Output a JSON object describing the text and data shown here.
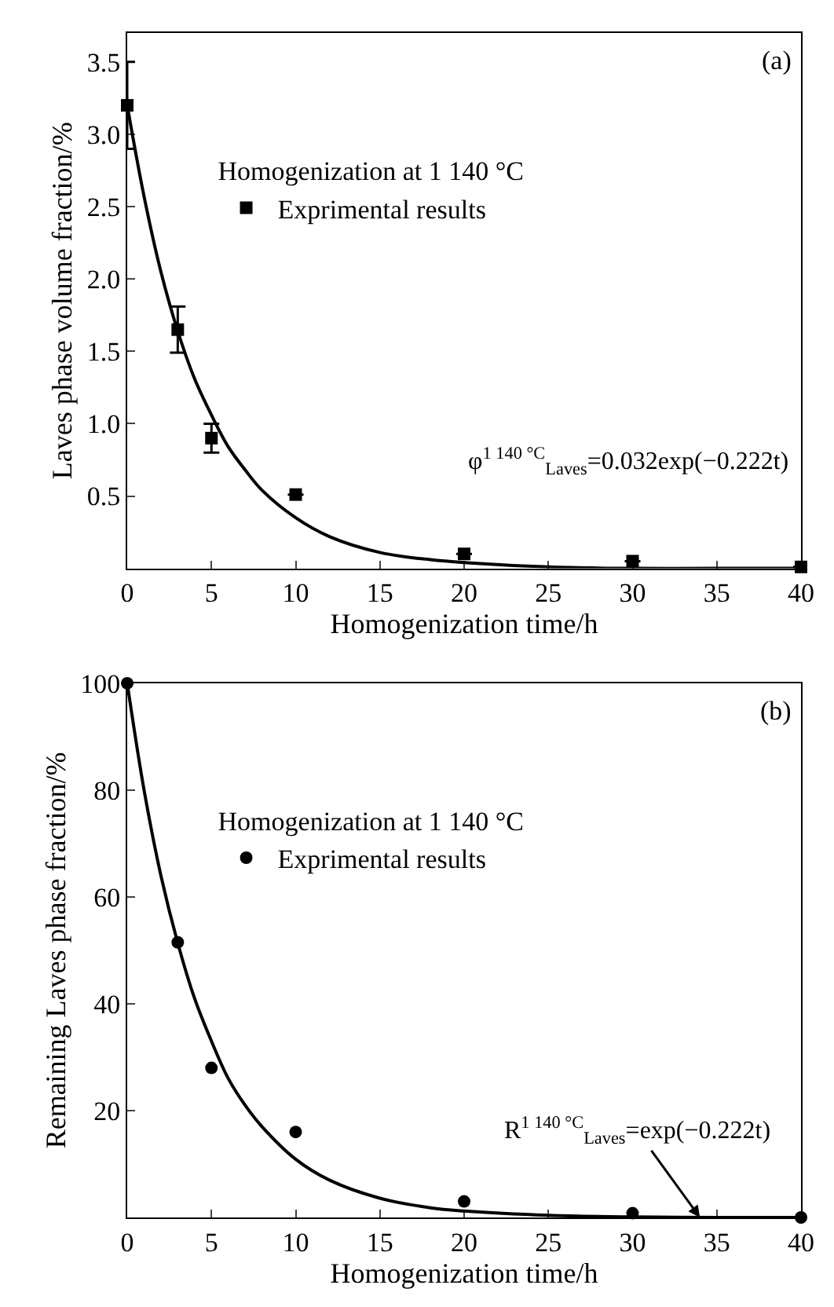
{
  "chart_data": [
    {
      "type": "scatter",
      "title": "(a)",
      "xlabel": "Homogenization time/h",
      "ylabel": "Laves phase volume fraction/%",
      "legend_title": "Homogenization at 1 140 °C",
      "legend": "top left",
      "xlim": [
        0,
        40
      ],
      "xticks": [
        0,
        5,
        10,
        15,
        20,
        25,
        30,
        35,
        40
      ],
      "ylim": [
        0,
        3.7
      ],
      "yticks": [
        0.5,
        {
          "value": 1,
          "label": "1.0"
        },
        1.5,
        {
          "value": 2,
          "label": "2.0"
        },
        2.5,
        {
          "value": 3,
          "label": "3.0"
        },
        3.5
      ],
      "annotations": [
        "φ$^{1 140 °C}$$_{Laves}$=0.032exp(−0.222t)"
      ],
      "series": [
        {
          "name": "Exprimental results",
          "marker": "square",
          "color": "#000000",
          "x": [
            0,
            3,
            5,
            10,
            20,
            30,
            40
          ],
          "values": [
            3.2,
            1.65,
            0.9,
            0.51,
            0.1,
            0.05,
            0.01
          ],
          "errors": [
            0.3,
            0.16,
            0.1,
            null,
            null,
            null,
            null
          ]
        },
        {
          "type": "line",
          "color": "#000000",
          "line_style": "solid",
          "x": [
            0,
            1,
            2,
            3,
            4,
            5,
            6,
            7,
            8,
            10,
            12,
            15,
            18,
            20,
            25,
            30,
            35,
            40
          ],
          "values": [
            3.2,
            2.57,
            2.05,
            1.64,
            1.31,
            1.06,
            0.84,
            0.68,
            0.54,
            0.35,
            0.22,
            0.11,
            0.06,
            0.04,
            0.01,
            0,
            0,
            0
          ]
        }
      ]
    },
    {
      "type": "scatter",
      "title": "(b)",
      "xlabel": "Homogenization time/h",
      "ylabel": "Remaining Laves phase fraction/%",
      "legend_title": "Homogenization at 1 140 °C",
      "legend": "top left",
      "xlim": [
        0,
        40
      ],
      "xticks": [
        0,
        5,
        10,
        15,
        20,
        25,
        30,
        35,
        40
      ],
      "ylim": [
        0,
        100
      ],
      "yticks": [
        20,
        40,
        60,
        80,
        100
      ],
      "annotations": [
        {
          "text": "R$^{1 140 °C}$$_{Laves}$=exp(−0.222t)",
          "x": 34,
          "y": 0
        }
      ],
      "series": [
        {
          "name": "Exprimental results",
          "marker": "circle",
          "color": "#000000",
          "x": [
            0,
            3,
            5,
            10,
            20,
            30,
            40
          ],
          "values": [
            100,
            51.5,
            28,
            16,
            3,
            0.8,
            0
          ]
        },
        {
          "type": "line",
          "color": "#000000",
          "line_style": "solid",
          "x": [
            0,
            1,
            2,
            3,
            4,
            5,
            6,
            7,
            8,
            10,
            12,
            15,
            18,
            20,
            25,
            30,
            35,
            40
          ],
          "values": [
            100,
            80,
            64,
            51.4,
            41,
            33,
            26,
            21,
            17,
            10.9,
            7,
            3.6,
            1.8,
            1.2,
            0.4,
            0.1,
            0,
            0
          ]
        }
      ]
    }
  ]
}
